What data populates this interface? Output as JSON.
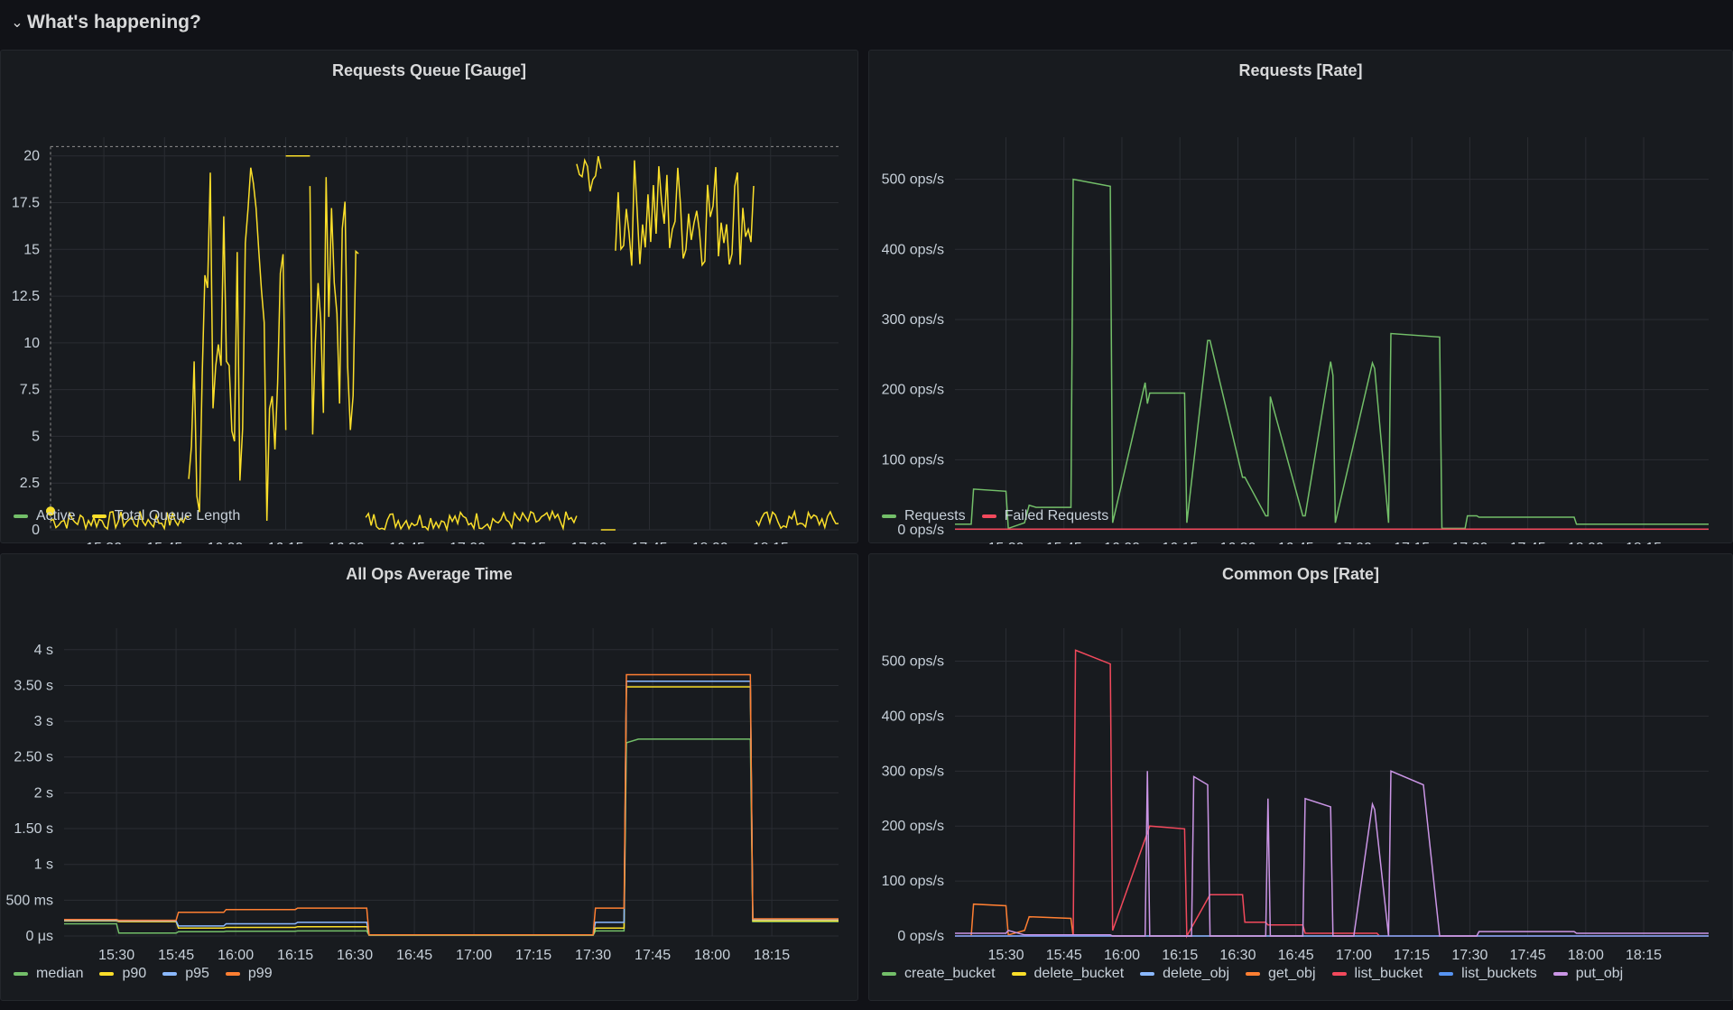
{
  "row": {
    "title": "What's happening?",
    "chevron": "chevron-down-icon"
  },
  "x_ticks": [
    "15:30",
    "15:45",
    "16:00",
    "16:15",
    "16:30",
    "16:45",
    "17:00",
    "17:15",
    "17:30",
    "17:45",
    "18:00",
    "18:15"
  ],
  "chart_data": [
    {
      "id": "rq",
      "type": "line",
      "title": "Requests Queue [Gauge]",
      "xlim": [
        15.28,
        18.53
      ],
      "ylim": [
        0,
        21
      ],
      "y_ticks": [
        "0",
        "2.5",
        "5",
        "7.5",
        "10",
        "12.5",
        "15",
        "17.5",
        "20"
      ],
      "y_values": [
        0,
        2.5,
        5,
        7.5,
        10,
        12.5,
        15,
        17.5,
        20
      ],
      "threshold_line": 20.5,
      "series": [
        {
          "name": "Active",
          "color": "#73bf69",
          "x": [
            15.28
          ],
          "y": [
            1
          ]
        },
        {
          "name": "Total Queue Length",
          "color": "#fade2a",
          "segments": [
            {
              "x": [
                15.28,
                15.43,
                15.58,
                15.78,
                15.85
              ],
              "y": [
                1,
                1,
                1,
                1,
                1
              ],
              "noise": [
                0,
                1
              ]
            },
            {
              "x": [
                15.85,
                16.02,
                16.1,
                16.17,
                16.25
              ],
              "y": [
                1,
                18,
                12,
                20,
                20
              ],
              "noise": [
                0,
                20
              ]
            },
            {
              "x": [
                16.25,
                16.35
              ],
              "y": [
                20,
                20
              ]
            },
            {
              "x": [
                16.35,
                16.42,
                16.55
              ],
              "y": [
                8,
                14,
                17
              ],
              "noise": [
                5,
                19
              ]
            },
            {
              "x": [
                16.58,
                16.8,
                17.0,
                17.25,
                17.45
              ],
              "y": [
                1,
                1,
                1,
                1,
                1
              ],
              "noise": [
                0,
                1
              ]
            },
            {
              "x": [
                17.45,
                17.55
              ],
              "y": [
                20,
                20
              ],
              "noise": [
                18,
                20
              ]
            },
            {
              "x": [
                17.55,
                17.61
              ],
              "y": [
                0,
                0
              ]
            },
            {
              "x": [
                17.61,
                17.9,
                18.18
              ],
              "y": [
                20,
                20,
                20
              ],
              "noise": [
                14,
                20
              ]
            },
            {
              "x": [
                18.19,
                18.35,
                18.53
              ],
              "y": [
                1,
                1,
                1
              ],
              "noise": [
                0,
                1
              ]
            }
          ]
        }
      ]
    },
    {
      "id": "rr",
      "type": "line",
      "title": "Requests [Rate]",
      "xlim": [
        15.28,
        18.53
      ],
      "ylim": [
        0,
        560
      ],
      "y_ticks": [
        "0 ops/s",
        "100 ops/s",
        "200 ops/s",
        "300 ops/s",
        "400 ops/s",
        "500 ops/s"
      ],
      "y_values": [
        0,
        100,
        200,
        300,
        400,
        500
      ],
      "series": [
        {
          "name": "Requests",
          "color": "#73bf69",
          "x": [
            15.28,
            15.35,
            15.36,
            15.5,
            15.51,
            15.58,
            15.6,
            15.63,
            15.78,
            15.79,
            15.95,
            15.96,
            16.1,
            16.11,
            16.12,
            16.27,
            16.28,
            16.37,
            16.38,
            16.52,
            16.53,
            16.62,
            16.63,
            16.64,
            16.78,
            16.79,
            16.9,
            16.91,
            16.92,
            17.08,
            17.09,
            17.15,
            17.16,
            17.37,
            17.38,
            17.48,
            17.49,
            17.53,
            17.54,
            17.88,
            17.95,
            17.96,
            18.53
          ],
          "y": [
            8,
            8,
            58,
            55,
            2,
            10,
            35,
            32,
            32,
            500,
            490,
            10,
            210,
            180,
            195,
            195,
            10,
            270,
            270,
            75,
            75,
            20,
            20,
            190,
            20,
            20,
            240,
            220,
            10,
            238,
            230,
            10,
            280,
            275,
            2,
            2,
            20,
            20,
            18,
            18,
            18,
            8,
            8
          ]
        },
        {
          "name": "Failed Requests",
          "color": "#f2495c",
          "x": [
            15.28,
            18.53
          ],
          "y": [
            1,
            1
          ]
        }
      ]
    },
    {
      "id": "ao",
      "type": "line",
      "title": "All Ops Average Time",
      "xlim": [
        15.28,
        18.53
      ],
      "ylim": [
        0,
        4300
      ],
      "y_ticks": [
        "0 μs",
        "500 ms",
        "1 s",
        "1.50 s",
        "2 s",
        "2.50 s",
        "3 s",
        "3.50 s",
        "4 s"
      ],
      "y_values": [
        0,
        500,
        1000,
        1500,
        2000,
        2500,
        3000,
        3500,
        4000
      ],
      "series": [
        {
          "name": "median",
          "color": "#73bf69",
          "x": [
            15.28,
            15.5,
            15.51,
            15.75,
            15.76,
            15.95,
            15.96,
            16.25,
            16.26,
            16.55,
            16.56,
            17.5,
            17.51,
            17.63,
            17.64,
            17.69,
            17.7,
            17.93,
            18.16,
            18.17,
            18.53
          ],
          "y": [
            170,
            170,
            40,
            40,
            60,
            60,
            65,
            65,
            70,
            70,
            10,
            10,
            70,
            70,
            2700,
            2750,
            2750,
            2750,
            2750,
            200,
            200
          ]
        },
        {
          "name": "p90",
          "color": "#fade2a",
          "x": [
            15.28,
            15.5,
            15.51,
            15.75,
            15.76,
            15.95,
            15.96,
            16.25,
            16.26,
            16.55,
            16.56,
            17.5,
            17.51,
            17.63,
            17.64,
            17.7,
            18.16,
            18.17,
            18.53
          ],
          "y": [
            210,
            210,
            200,
            200,
            110,
            110,
            120,
            120,
            130,
            130,
            15,
            15,
            110,
            110,
            3480,
            3480,
            3480,
            210,
            210
          ]
        },
        {
          "name": "p95",
          "color": "#8ab8ff",
          "x": [
            15.28,
            15.5,
            15.51,
            15.75,
            15.76,
            15.95,
            15.96,
            16.25,
            16.26,
            16.55,
            16.56,
            17.5,
            17.51,
            17.63,
            17.64,
            17.7,
            18.16,
            18.17,
            18.53
          ],
          "y": [
            220,
            220,
            210,
            210,
            140,
            140,
            170,
            170,
            190,
            190,
            15,
            15,
            190,
            190,
            3560,
            3560,
            3560,
            230,
            230
          ]
        },
        {
          "name": "p99",
          "color": "#ff7f32",
          "x": [
            15.28,
            15.5,
            15.51,
            15.75,
            15.76,
            15.95,
            15.96,
            16.25,
            16.26,
            16.55,
            16.56,
            17.5,
            17.51,
            17.63,
            17.64,
            17.7,
            18.16,
            18.17,
            18.53
          ],
          "y": [
            230,
            230,
            220,
            220,
            330,
            330,
            370,
            370,
            390,
            390,
            15,
            15,
            390,
            390,
            3650,
            3650,
            3650,
            240,
            240
          ]
        }
      ]
    },
    {
      "id": "co",
      "type": "line",
      "title": "Common Ops [Rate]",
      "xlim": [
        15.28,
        18.53
      ],
      "ylim": [
        0,
        560
      ],
      "y_ticks": [
        "0 ops/s",
        "100 ops/s",
        "200 ops/s",
        "300 ops/s",
        "400 ops/s",
        "500 ops/s"
      ],
      "y_values": [
        0,
        100,
        200,
        300,
        400,
        500
      ],
      "series": [
        {
          "name": "create_bucket",
          "color": "#73bf69",
          "x": [
            15.28,
            18.53
          ],
          "y": [
            0,
            0
          ]
        },
        {
          "name": "delete_bucket",
          "color": "#fade2a",
          "x": [
            15.28,
            18.53
          ],
          "y": [
            0,
            0
          ]
        },
        {
          "name": "delete_obj",
          "color": "#8ab8ff",
          "x": [
            15.28,
            18.53
          ],
          "y": [
            0,
            0
          ]
        },
        {
          "name": "get_obj",
          "color": "#ff7f32",
          "x": [
            15.28,
            15.35,
            15.36,
            15.5,
            15.51,
            15.58,
            15.6,
            15.78,
            15.79,
            18.53
          ],
          "y": [
            0,
            0,
            58,
            55,
            2,
            10,
            35,
            32,
            0,
            0
          ]
        },
        {
          "name": "list_bucket",
          "color": "#f2495c",
          "x": [
            15.28,
            15.79,
            15.8,
            15.95,
            15.96,
            16.12,
            16.27,
            16.28,
            16.38,
            16.52,
            16.53,
            16.62,
            16.63,
            16.78,
            16.79,
            17.1,
            17.11,
            17.16,
            18.53
          ],
          "y": [
            0,
            0,
            520,
            495,
            10,
            200,
            195,
            0,
            75,
            75,
            25,
            25,
            20,
            20,
            5,
            5,
            0,
            0,
            0
          ]
        },
        {
          "name": "list_buckets",
          "color": "#5794f2",
          "x": [
            15.28,
            18.53
          ],
          "y": [
            0,
            0
          ]
        },
        {
          "name": "put_obj",
          "color": "#ca95e5",
          "x": [
            15.28,
            15.5,
            15.51,
            15.58,
            15.95,
            15.96,
            15.97,
            16.1,
            16.11,
            16.12,
            16.3,
            16.31,
            16.37,
            16.38,
            16.45,
            16.6,
            16.62,
            16.63,
            16.64,
            16.78,
            16.79,
            16.9,
            16.91,
            17.0,
            17.08,
            17.09,
            17.15,
            17.16,
            17.3,
            17.37,
            17.38,
            17.53,
            17.54,
            17.88,
            17.95,
            17.96,
            18.53
          ],
          "y": [
            5,
            5,
            10,
            2,
            2,
            0,
            0,
            0,
            300,
            0,
            0,
            290,
            275,
            0,
            0,
            0,
            0,
            250,
            0,
            0,
            250,
            235,
            0,
            0,
            240,
            230,
            0,
            300,
            275,
            0,
            0,
            0,
            8,
            8,
            8,
            5,
            5
          ]
        }
      ]
    }
  ]
}
